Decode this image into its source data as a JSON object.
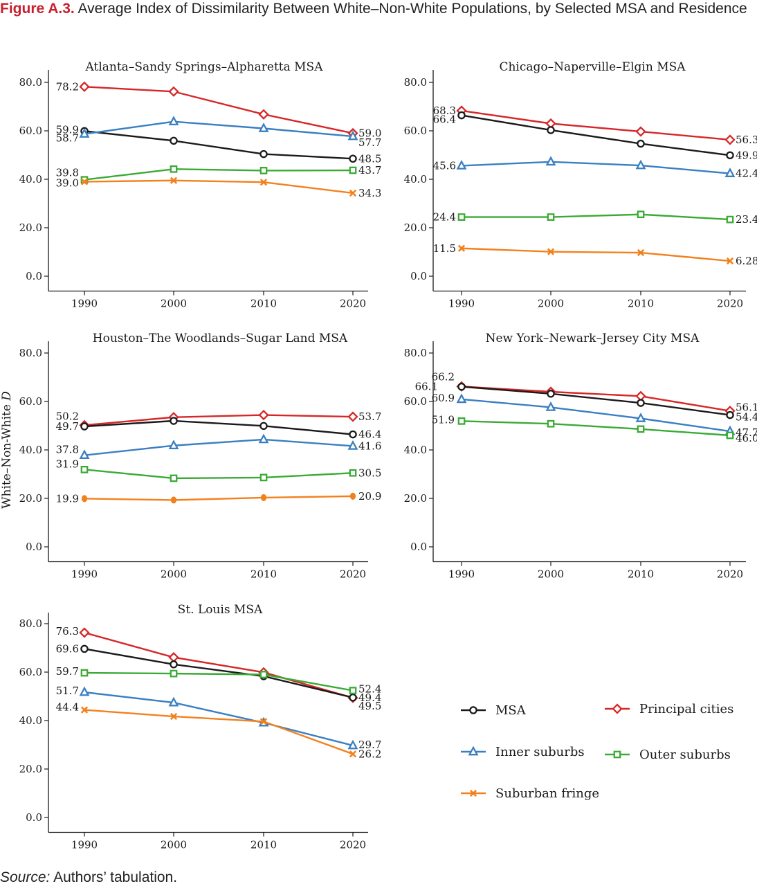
{
  "figure": {
    "label": "Figure A.3.",
    "title": "Average Index of Dissimilarity Between White–Non-White Populations, by Selected MSA and Residence",
    "ylabel_main": "White–Non-White",
    "ylabel_var": "D",
    "source_label": "Source:",
    "source_text": "Authors’ tabulation."
  },
  "colors": {
    "MSA": "#1a1a1a",
    "Principal cities": "#d62728",
    "Inner suburbs": "#3a7fc1",
    "Outer suburbs": "#3aaa35",
    "Suburban fringe": "#f2811d"
  },
  "legend": [
    {
      "name": "MSA",
      "marker": "circle"
    },
    {
      "name": "Principal cities",
      "marker": "diamond"
    },
    {
      "name": "Inner suburbs",
      "marker": "triangle"
    },
    {
      "name": "Outer suburbs",
      "marker": "square"
    },
    {
      "name": "Suburban fringe",
      "marker": "x"
    }
  ],
  "chart_data": [
    {
      "type": "line",
      "title": "Atlanta–Sandy Springs–Alpharetta MSA",
      "x": [
        1990,
        2000,
        2010,
        2020
      ],
      "yticks": [
        "0.0",
        "20.0",
        "40.0",
        "60.0",
        "80.0"
      ],
      "ylim": [
        -3,
        85
      ],
      "series": [
        {
          "name": "Principal cities",
          "values": [
            78.2,
            76.2,
            66.8,
            59.0
          ],
          "labels": [
            "78.2",
            null,
            null,
            "59.0"
          ]
        },
        {
          "name": "MSA",
          "values": [
            59.9,
            55.9,
            50.4,
            48.5
          ],
          "labels": [
            "59.9",
            null,
            null,
            "48.5"
          ]
        },
        {
          "name": "Inner suburbs",
          "values": [
            58.7,
            63.8,
            61.0,
            57.7
          ],
          "labels": [
            "58.7",
            null,
            null,
            "57.7"
          ]
        },
        {
          "name": "Outer suburbs",
          "values": [
            39.8,
            44.2,
            43.6,
            43.7
          ],
          "labels": [
            "39.8",
            null,
            null,
            "43.7"
          ]
        },
        {
          "name": "Suburban fringe",
          "values": [
            39.0,
            39.5,
            38.8,
            34.3
          ],
          "labels": [
            "39.0",
            null,
            null,
            "34.3"
          ]
        }
      ]
    },
    {
      "type": "line",
      "title": "Chicago–Naperville–Elgin MSA",
      "x": [
        1990,
        2000,
        2010,
        2020
      ],
      "yticks": [
        "0.0",
        "20.0",
        "40.0",
        "60.0",
        "80.0"
      ],
      "ylim": [
        -3,
        85
      ],
      "series": [
        {
          "name": "Principal cities",
          "values": [
            68.3,
            63.0,
            59.7,
            56.3
          ],
          "labels": [
            "68.3",
            null,
            null,
            "56.3"
          ]
        },
        {
          "name": "MSA",
          "values": [
            66.4,
            60.3,
            54.7,
            49.9
          ],
          "labels": [
            "66.4",
            null,
            null,
            "49.9"
          ]
        },
        {
          "name": "Inner suburbs",
          "values": [
            45.6,
            47.2,
            45.7,
            42.4
          ],
          "labels": [
            "45.6",
            null,
            null,
            "42.4"
          ]
        },
        {
          "name": "Outer suburbs",
          "values": [
            24.4,
            24.4,
            25.5,
            23.4
          ],
          "labels": [
            "24.4",
            null,
            null,
            "23.4"
          ]
        },
        {
          "name": "Suburban fringe",
          "values": [
            11.5,
            10.1,
            9.7,
            6.28
          ],
          "labels": [
            "11.5",
            null,
            null,
            "6.28"
          ]
        }
      ]
    },
    {
      "type": "line",
      "title": "Houston–The Woodlands–Sugar Land MSA",
      "x": [
        1990,
        2000,
        2010,
        2020
      ],
      "yticks": [
        "0.0",
        "20.0",
        "40.0",
        "60.0",
        "80.0"
      ],
      "ylim": [
        -3,
        85
      ],
      "series": [
        {
          "name": "Principal cities",
          "values": [
            50.2,
            53.5,
            54.4,
            53.7
          ],
          "labels": [
            "50.2",
            null,
            null,
            "53.7"
          ]
        },
        {
          "name": "MSA",
          "values": [
            49.7,
            52.0,
            49.9,
            46.4
          ],
          "labels": [
            "49.7",
            null,
            null,
            "46.4"
          ]
        },
        {
          "name": "Inner suburbs",
          "values": [
            37.8,
            41.8,
            44.3,
            41.6
          ],
          "labels": [
            "37.8",
            null,
            null,
            "41.6"
          ]
        },
        {
          "name": "Outer suburbs",
          "values": [
            31.9,
            28.3,
            28.6,
            30.5
          ],
          "labels": [
            "31.9",
            null,
            null,
            "30.5"
          ]
        },
        {
          "name": "Suburban fringe",
          "values": [
            19.9,
            19.3,
            20.3,
            20.9
          ],
          "labels": [
            "19.9",
            null,
            null,
            "20.9"
          ]
        }
      ]
    },
    {
      "type": "line",
      "title": "New York–Newark–Jersey City MSA",
      "x": [
        1990,
        2000,
        2010,
        2020
      ],
      "yticks": [
        "0.0",
        "20.0",
        "40.0",
        "60.0",
        "80.0"
      ],
      "ylim": [
        -3,
        85
      ],
      "series": [
        {
          "name": "Principal cities",
          "values": [
            66.2,
            64.0,
            62.2,
            56.1
          ],
          "labels": [
            "66.2",
            null,
            null,
            "56.1"
          ]
        },
        {
          "name": "MSA",
          "values": [
            66.1,
            63.2,
            59.4,
            54.4
          ],
          "labels": [
            "66.1",
            null,
            null,
            "54.4"
          ]
        },
        {
          "name": "Inner suburbs",
          "values": [
            60.9,
            57.6,
            53.0,
            47.7
          ],
          "labels": [
            "60.9",
            null,
            null,
            "47.7"
          ]
        },
        {
          "name": "Outer suburbs",
          "values": [
            51.9,
            50.8,
            48.6,
            46.0
          ],
          "labels": [
            "51.9",
            null,
            null,
            "46.0"
          ]
        }
      ]
    },
    {
      "type": "line",
      "title": "St. Louis MSA",
      "x": [
        1990,
        2000,
        2010,
        2020
      ],
      "yticks": [
        "0.0",
        "20.0",
        "40.0",
        "60.0",
        "80.0"
      ],
      "ylim": [
        -3,
        85
      ],
      "series": [
        {
          "name": "Principal cities",
          "values": [
            76.3,
            66.1,
            59.9,
            49.4
          ],
          "labels": [
            "76.3",
            null,
            null,
            "49.4"
          ]
        },
        {
          "name": "MSA",
          "values": [
            69.6,
            63.2,
            58.3,
            49.5
          ],
          "labels": [
            "69.6",
            null,
            null,
            "49.5"
          ]
        },
        {
          "name": "Outer suburbs",
          "values": [
            59.7,
            59.4,
            59.0,
            52.4
          ],
          "labels": [
            "59.7",
            null,
            null,
            "52.4"
          ]
        },
        {
          "name": "Inner suburbs",
          "values": [
            51.7,
            47.4,
            39.1,
            29.7
          ],
          "labels": [
            "51.7",
            null,
            null,
            "29.7"
          ]
        },
        {
          "name": "Suburban fringe",
          "values": [
            44.4,
            41.7,
            39.6,
            26.2
          ],
          "labels": [
            "44.4",
            null,
            null,
            "26.2"
          ]
        }
      ]
    }
  ]
}
